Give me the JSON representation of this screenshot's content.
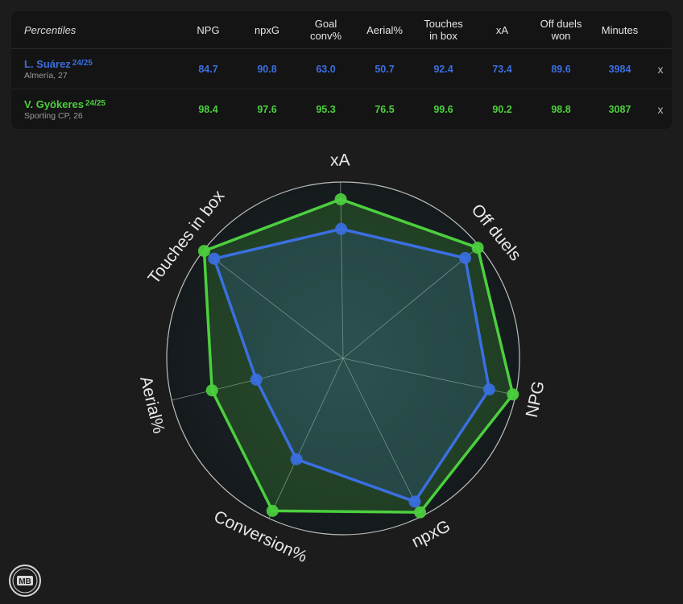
{
  "table": {
    "corner_label": "Percentiles",
    "columns": [
      {
        "line1": "NPG",
        "line2": ""
      },
      {
        "line1": "npxG",
        "line2": ""
      },
      {
        "line1": "Goal",
        "line2": "conv%"
      },
      {
        "line1": "Aerial%",
        "line2": ""
      },
      {
        "line1": "Touches",
        "line2": "in box"
      },
      {
        "line1": "xA",
        "line2": ""
      },
      {
        "line1": "Off duels",
        "line2": "won"
      },
      {
        "line1": "Minutes",
        "line2": ""
      }
    ],
    "remove_label": "x",
    "rows": [
      {
        "name": "L. Suárez",
        "season": "24/25",
        "sub": "Almería, 27",
        "color": "#3b6fe0",
        "values": [
          "84.7",
          "90.8",
          "63.0",
          "50.7",
          "92.4",
          "73.4",
          "89.6",
          "3984"
        ]
      },
      {
        "name": "V. Gyökeres",
        "season": "24/25",
        "sub": "Sporting CP, 26",
        "color": "#4ccf3e",
        "values": [
          "98.4",
          "97.6",
          "95.3",
          "76.5",
          "99.6",
          "90.2",
          "98.8",
          "3087"
        ]
      }
    ]
  },
  "chart_data": {
    "type": "radar",
    "axes": [
      "NPG",
      "npxG",
      "Conversion%",
      "Aerial%",
      "Touches in box",
      "xA",
      "Off duels"
    ],
    "range": [
      0,
      100
    ],
    "series": [
      {
        "name": "L. Suárez",
        "color": "#3b6fe0",
        "values": [
          84.7,
          90.8,
          63.0,
          50.7,
          92.4,
          73.4,
          89.6
        ]
      },
      {
        "name": "V. Gyökeres",
        "color": "#4ccf3e",
        "values": [
          98.4,
          97.6,
          95.3,
          76.5,
          99.6,
          90.2,
          98.8
        ]
      }
    ]
  },
  "logo_text": "MB"
}
